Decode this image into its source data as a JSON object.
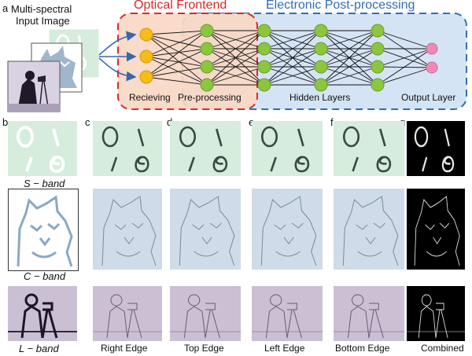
{
  "panel_a": {
    "label": "a",
    "input_title": [
      "Multi-spectral",
      "Input Image"
    ],
    "optical_title": "Optical Frontend",
    "electronic_title": "Electronic Post-processing",
    "stage_labels": [
      "Recieving",
      "Pre-processing",
      "Hidden Layers",
      "Output Layer"
    ],
    "colors": {
      "optical_border": "#d62a2a",
      "optical_fill": "#f8d8c4",
      "electronic_border": "#2f6fb5",
      "electronic_fill": "#d5e4f5",
      "receiving_node": "#f5bc1a",
      "hidden_node": "#8cc63f",
      "output_node": "#f08ab4"
    },
    "layer_sizes": [
      3,
      4,
      4,
      4,
      4,
      2
    ]
  },
  "panel_labels": [
    "b",
    "c",
    "d",
    "e",
    "f",
    "g"
  ],
  "band_labels": [
    "S − band",
    "C − band",
    "L −  band"
  ],
  "column_labels": [
    "Right Edge",
    "Top Edge",
    "Left Edge",
    "Bottom Edge",
    "Combined"
  ],
  "band_colors": {
    "S": "#d6ecdd",
    "C": "#cfdbe9",
    "L": "#cbbfd4",
    "combined": "#000000"
  },
  "input_stack_text": [
    "0",
    "1",
    "8"
  ]
}
